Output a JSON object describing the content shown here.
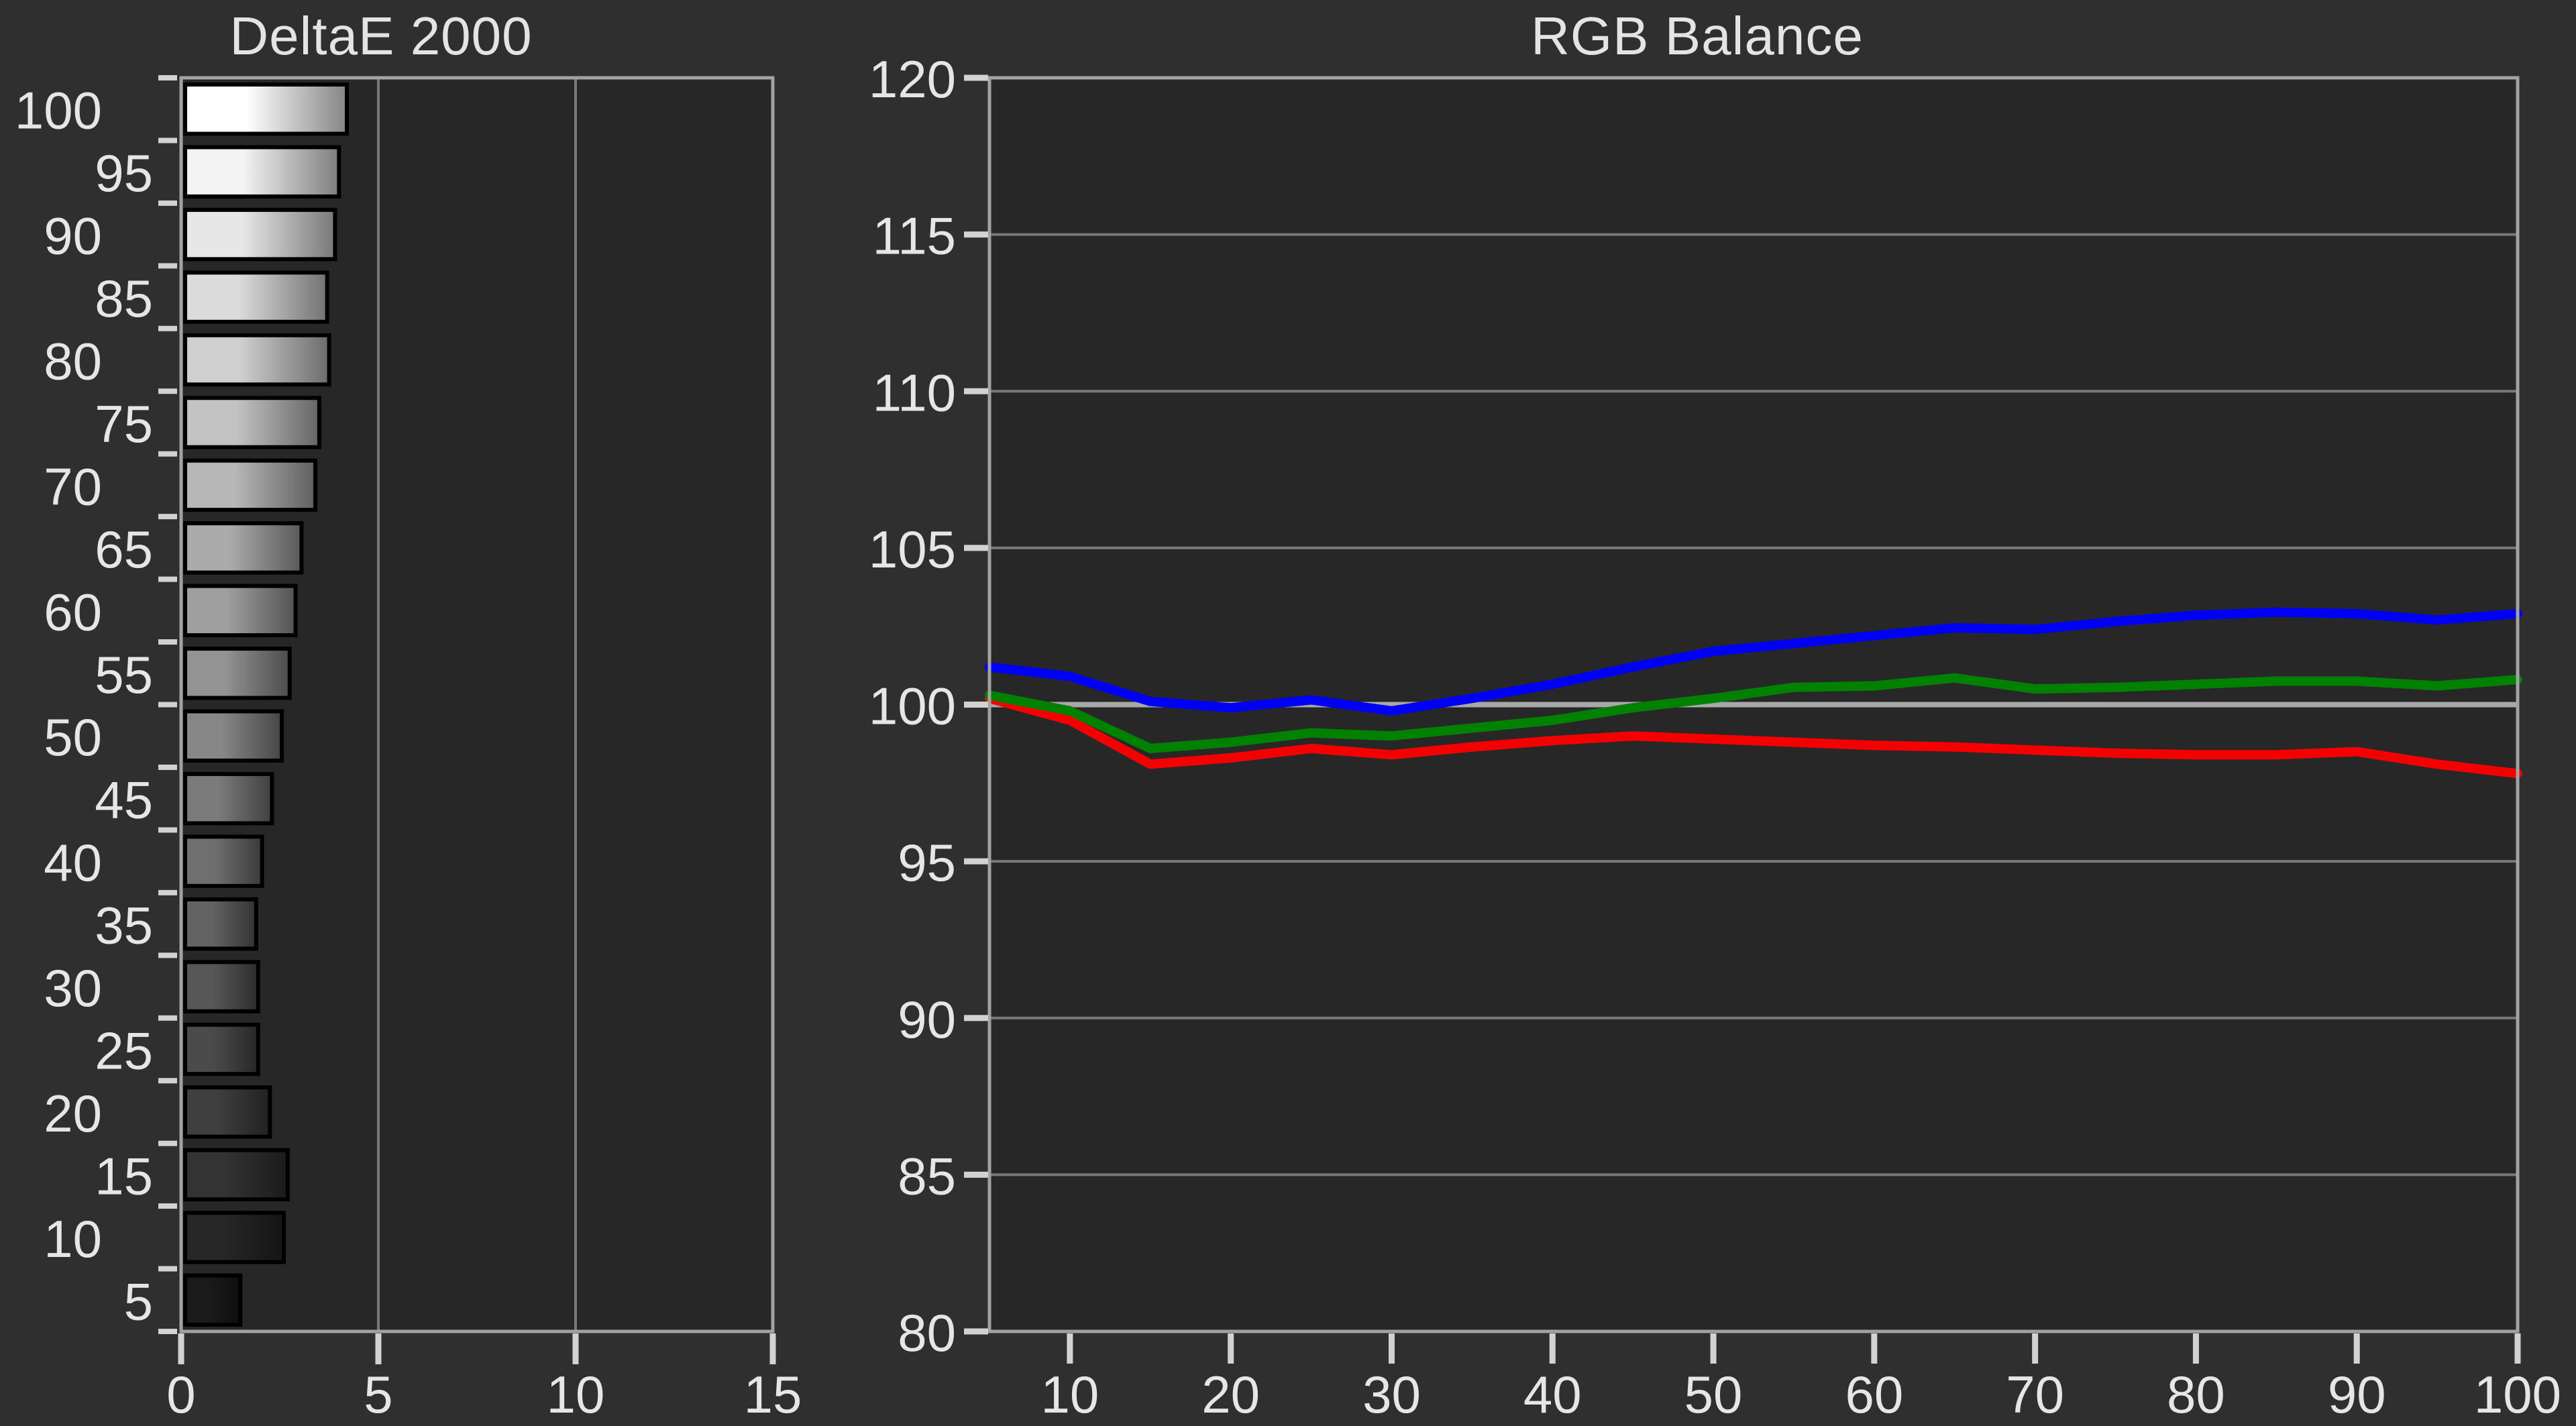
{
  "page": {
    "background": "#2f2f2f"
  },
  "colors": {
    "plot_bg": "#272727",
    "frame": "#a2a2a2",
    "grid": "#787878",
    "tick": "#d2d2d2",
    "text": "#e6e6e6",
    "title": "#e2e4e6",
    "reference_line": "#a8a8a8",
    "bar_border": "#000000"
  },
  "chart_data": [
    {
      "type": "bar",
      "orientation": "horizontal",
      "title": "DeltaE 2000",
      "categories": [
        100,
        95,
        90,
        85,
        80,
        75,
        70,
        65,
        60,
        55,
        50,
        45,
        40,
        35,
        30,
        25,
        20,
        15,
        10,
        5
      ],
      "values": [
        4.1,
        3.9,
        3.8,
        3.6,
        3.65,
        3.4,
        3.3,
        2.95,
        2.8,
        2.65,
        2.45,
        2.2,
        1.95,
        1.8,
        1.85,
        1.85,
        2.15,
        2.6,
        2.5,
        1.4
      ],
      "xlim": [
        0,
        15
      ],
      "x_ticks": [
        0,
        5,
        10,
        15
      ],
      "gridlines_x": [
        5,
        10
      ],
      "bar_fill": "grayscale gradient matching each video level, light to dark left-to-right",
      "grid": true,
      "legend": "none"
    },
    {
      "type": "line",
      "title": "RGB Balance",
      "x": [
        5,
        10,
        15,
        20,
        25,
        30,
        35,
        40,
        45,
        50,
        55,
        60,
        65,
        70,
        75,
        80,
        85,
        90,
        95,
        100
      ],
      "xlim": [
        5,
        100
      ],
      "x_ticks": [
        10,
        20,
        30,
        40,
        50,
        60,
        70,
        80,
        90,
        100
      ],
      "ylim": [
        80,
        120
      ],
      "y_ticks": [
        80,
        85,
        90,
        95,
        100,
        105,
        110,
        115,
        120
      ],
      "reference_line": 100,
      "grid": true,
      "legend": "none",
      "series": [
        {
          "name": "Red",
          "color": "#f40000",
          "values": [
            100.2,
            99.5,
            98.1,
            98.3,
            98.6,
            98.4,
            98.65,
            98.85,
            99.0,
            98.9,
            98.8,
            98.7,
            98.65,
            98.55,
            98.45,
            98.4,
            98.4,
            98.5,
            98.1,
            97.8
          ]
        },
        {
          "name": "Green",
          "color": "#008200",
          "values": [
            100.3,
            99.8,
            98.6,
            98.8,
            99.1,
            99.0,
            99.25,
            99.5,
            99.9,
            100.2,
            100.55,
            100.6,
            100.85,
            100.5,
            100.55,
            100.65,
            100.75,
            100.75,
            100.6,
            100.8
          ]
        },
        {
          "name": "Blue",
          "color": "#0000f4",
          "values": [
            101.2,
            100.9,
            100.1,
            99.9,
            100.15,
            99.8,
            100.2,
            100.65,
            101.2,
            101.7,
            101.95,
            102.2,
            102.45,
            102.4,
            102.65,
            102.85,
            102.95,
            102.9,
            102.7,
            102.9
          ]
        }
      ]
    }
  ]
}
